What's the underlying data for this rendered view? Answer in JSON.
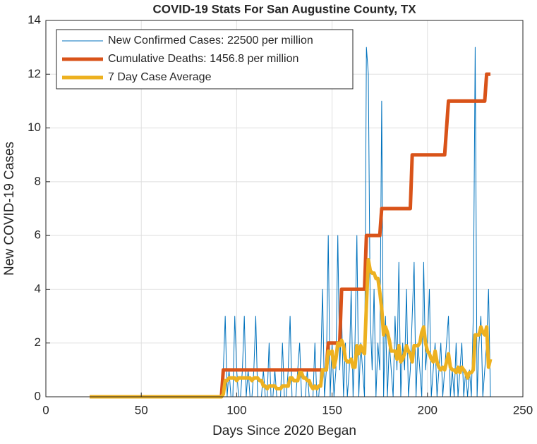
{
  "chart_data": {
    "type": "line",
    "title": "COVID-19 Stats For San Augustine County, TX",
    "xlabel": "Days Since 2020 Began",
    "ylabel": "New COVID-19 Cases",
    "xlim": [
      0,
      250
    ],
    "xticks": [
      0,
      50,
      100,
      150,
      200,
      250
    ],
    "ylim": [
      0,
      14
    ],
    "yticks": [
      0,
      2,
      4,
      6,
      8,
      10,
      12,
      14
    ],
    "grid": true,
    "legend": "upper-left",
    "x": [
      23,
      24,
      25,
      26,
      27,
      28,
      29,
      30,
      31,
      32,
      33,
      34,
      35,
      36,
      37,
      38,
      39,
      40,
      41,
      42,
      43,
      44,
      45,
      46,
      47,
      48,
      49,
      50,
      51,
      52,
      53,
      54,
      55,
      56,
      57,
      58,
      59,
      60,
      61,
      62,
      63,
      64,
      65,
      66,
      67,
      68,
      69,
      70,
      71,
      72,
      73,
      74,
      75,
      76,
      77,
      78,
      79,
      80,
      81,
      82,
      83,
      84,
      85,
      86,
      87,
      88,
      89,
      90,
      91,
      92,
      93,
      94,
      95,
      96,
      97,
      98,
      99,
      100,
      101,
      102,
      103,
      104,
      105,
      106,
      107,
      108,
      109,
      110,
      111,
      112,
      113,
      114,
      115,
      116,
      117,
      118,
      119,
      120,
      121,
      122,
      123,
      124,
      125,
      126,
      127,
      128,
      129,
      130,
      131,
      132,
      133,
      134,
      135,
      136,
      137,
      138,
      139,
      140,
      141,
      142,
      143,
      144,
      145,
      146,
      147,
      148,
      149,
      150,
      151,
      152,
      153,
      154,
      155,
      156,
      157,
      158,
      159,
      160,
      161,
      162,
      163,
      164,
      165,
      166,
      167,
      168,
      169,
      170,
      171,
      172,
      173,
      174,
      175,
      176,
      177,
      178,
      179,
      180,
      181,
      182,
      183,
      184,
      185,
      186,
      187,
      188,
      189,
      190,
      191,
      192,
      193,
      194,
      195,
      196,
      197,
      198,
      199,
      200,
      201,
      202,
      203,
      204,
      205,
      206,
      207,
      208,
      209,
      210,
      211,
      212,
      213,
      214,
      215,
      216,
      217,
      218,
      219,
      220,
      221,
      222,
      223,
      224,
      225,
      226,
      227,
      228,
      229,
      230,
      231,
      232,
      233
    ],
    "series": [
      {
        "name": "New Confirmed Cases: 22500 per million",
        "color": "#0072bd",
        "width": 1,
        "values": [
          0,
          0,
          0,
          0,
          0,
          0,
          0,
          0,
          0,
          0,
          0,
          0,
          0,
          0,
          0,
          0,
          0,
          0,
          0,
          0,
          0,
          0,
          0,
          0,
          0,
          0,
          0,
          0,
          0,
          0,
          0,
          0,
          0,
          0,
          0,
          0,
          0,
          0,
          0,
          0,
          0,
          0,
          0,
          0,
          0,
          0,
          0,
          0,
          0,
          0,
          0,
          0,
          0,
          0,
          0,
          0,
          0,
          0,
          0,
          0,
          0,
          0,
          0,
          0,
          0,
          0,
          0,
          0,
          0,
          0,
          1,
          3,
          0,
          1,
          0,
          0,
          3,
          1,
          0,
          0,
          1,
          3,
          0,
          1,
          0,
          0,
          1,
          3,
          0,
          0,
          0,
          1,
          0,
          0,
          2,
          0,
          0,
          1,
          0,
          0,
          0,
          2,
          0,
          0,
          1,
          3,
          0,
          0,
          0,
          1,
          2,
          0,
          0,
          0,
          1,
          0,
          0,
          0,
          2,
          0,
          0,
          1,
          4,
          0,
          1,
          6,
          0,
          2,
          0,
          1,
          6,
          1,
          3,
          0,
          2,
          0,
          1,
          4,
          0,
          2,
          6,
          0,
          2,
          1,
          0,
          13,
          12,
          3,
          1,
          4,
          0,
          2,
          1,
          11,
          0,
          3,
          0,
          2,
          1,
          0,
          3,
          1,
          5,
          0,
          2,
          1,
          4,
          0,
          1,
          3,
          5,
          0,
          2,
          1,
          0,
          5,
          1,
          2,
          4,
          0,
          1,
          2,
          0,
          1,
          2,
          0,
          1,
          2,
          3,
          0,
          1,
          0,
          2,
          0,
          1,
          2,
          0,
          1,
          0,
          1,
          0,
          3,
          13,
          0,
          2,
          3,
          0,
          1,
          2,
          4,
          0
        ]
      },
      {
        "name": "Cumulative Deaths: 1456.8 per million",
        "color": "#d95319",
        "width": 5,
        "values": [
          0,
          0,
          0,
          0,
          0,
          0,
          0,
          0,
          0,
          0,
          0,
          0,
          0,
          0,
          0,
          0,
          0,
          0,
          0,
          0,
          0,
          0,
          0,
          0,
          0,
          0,
          0,
          0,
          0,
          0,
          0,
          0,
          0,
          0,
          0,
          0,
          0,
          0,
          0,
          0,
          0,
          0,
          0,
          0,
          0,
          0,
          0,
          0,
          0,
          0,
          0,
          0,
          0,
          0,
          0,
          0,
          0,
          0,
          0,
          0,
          0,
          0,
          0,
          0,
          0,
          0,
          0,
          0,
          0,
          0,
          1,
          1,
          1,
          1,
          1,
          1,
          1,
          1,
          1,
          1,
          1,
          1,
          1,
          1,
          1,
          1,
          1,
          1,
          1,
          1,
          1,
          1,
          1,
          1,
          1,
          1,
          1,
          1,
          1,
          1,
          1,
          1,
          1,
          1,
          1,
          1,
          1,
          1,
          1,
          1,
          1,
          1,
          1,
          1,
          1,
          1,
          1,
          1,
          1,
          1,
          1,
          1,
          1,
          1,
          1,
          2,
          2,
          2,
          2,
          2,
          2,
          2,
          4,
          4,
          4,
          4,
          4,
          4,
          4,
          4,
          4,
          4,
          4,
          4,
          4,
          6,
          6,
          6,
          6,
          6,
          6,
          6,
          6,
          7,
          7,
          7,
          7,
          7,
          7,
          7,
          7,
          7,
          7,
          7,
          7,
          7,
          7,
          7,
          7,
          9,
          9,
          9,
          9,
          9,
          9,
          9,
          9,
          9,
          9,
          9,
          9,
          9,
          9,
          9,
          9,
          9,
          9,
          10,
          11,
          11,
          11,
          11,
          11,
          11,
          11,
          11,
          11,
          11,
          11,
          11,
          11,
          11,
          11,
          11,
          11,
          11,
          11,
          11,
          12,
          12,
          12
        ]
      },
      {
        "name": "7 Day Case Average",
        "color": "#edb120",
        "width": 5,
        "values": [
          0,
          0,
          0,
          0,
          0,
          0,
          0,
          0,
          0,
          0,
          0,
          0,
          0,
          0,
          0,
          0,
          0,
          0,
          0,
          0,
          0,
          0,
          0,
          0,
          0,
          0,
          0,
          0,
          0,
          0,
          0,
          0,
          0,
          0,
          0,
          0,
          0,
          0,
          0,
          0,
          0,
          0,
          0,
          0,
          0,
          0,
          0,
          0,
          0,
          0,
          0,
          0,
          0,
          0,
          0,
          0,
          0,
          0,
          0,
          0,
          0,
          0,
          0,
          0,
          0,
          0,
          0,
          0,
          0,
          0,
          0.1,
          0.6,
          0.6,
          0.7,
          0.7,
          0.7,
          0.7,
          0.6,
          0.7,
          0.7,
          0.7,
          0.7,
          0.7,
          0.7,
          0.7,
          0.6,
          0.7,
          0.7,
          0.7,
          0.6,
          0.6,
          0.4,
          0.4,
          0.3,
          0.4,
          0.4,
          0.4,
          0.4,
          0.3,
          0.3,
          0.3,
          0.4,
          0.4,
          0.4,
          0.4,
          0.7,
          0.7,
          0.6,
          0.6,
          0.6,
          0.9,
          0.9,
          0.7,
          0.7,
          0.6,
          0.6,
          0.4,
          0.3,
          0.4,
          0.3,
          0.4,
          0.4,
          1.0,
          1.0,
          1.0,
          1.7,
          1.6,
          1.7,
          1.1,
          1.4,
          2.0,
          1.9,
          2.1,
          1.9,
          1.4,
          1.3,
          1.3,
          1.4,
          1.1,
          1.1,
          1.9,
          1.6,
          1.9,
          1.7,
          1.6,
          3.4,
          5.1,
          4.7,
          4.6,
          4.6,
          4.4,
          4.4,
          3.9,
          3.3,
          2.3,
          2.6,
          2.4,
          2.1,
          1.7,
          1.7,
          1.7,
          1.4,
          1.9,
          1.3,
          1.4,
          1.6,
          1.9,
          1.7,
          1.6,
          1.3,
          1.9,
          1.9,
          1.9,
          2.0,
          2.4,
          2.6,
          2.0,
          1.7,
          1.6,
          1.4,
          1.3,
          1.7,
          1.3,
          1.1,
          1.0,
          1.1,
          1.0,
          1.3,
          1.6,
          1.1,
          1.0,
          1.0,
          0.9,
          1.1,
          0.9,
          1.1,
          1.0,
          0.9,
          0.7,
          0.9,
          0.9,
          1.0,
          2.3,
          2.3,
          2.3,
          2.6,
          2.4,
          2.3,
          2.6,
          1.1,
          1.4
        ]
      }
    ]
  }
}
